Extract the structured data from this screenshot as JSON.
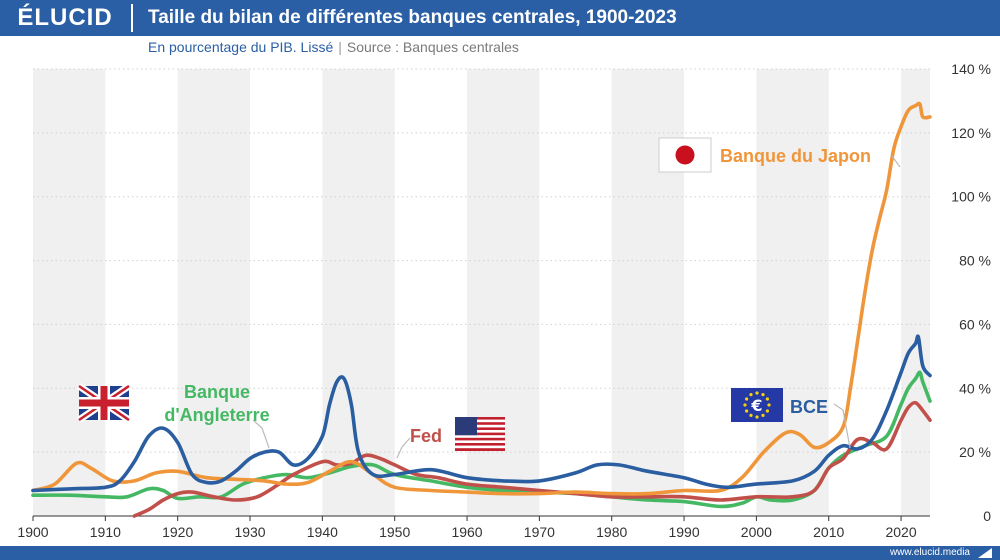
{
  "header": {
    "logo": "ÉLUCID",
    "title": "Taille du bilan de différentes banques centrales, 1900-2023",
    "subtitle": "En pourcentage du PIB. Lissé",
    "separator": "|",
    "source": "Source : Banques centrales"
  },
  "footer": {
    "url": "www.elucid.media"
  },
  "colors": {
    "brand": "#2a5fa5",
    "japan": "#f0963a",
    "ecb": "#2a5ea0",
    "england": "#45b864",
    "fed": "#c2504a",
    "band": "#f0f0f0",
    "grid": "#d0d0d0"
  },
  "chart_data": {
    "type": "line",
    "title": "Taille du bilan de différentes banques centrales, 1900-2023",
    "subtitle": "En pourcentage du PIB. Lissé",
    "xlim": [
      1900,
      2024
    ],
    "ylim": [
      0,
      140
    ],
    "x_ticks": [
      1900,
      1910,
      1920,
      1930,
      1940,
      1950,
      1960,
      1970,
      1980,
      1990,
      2000,
      2010,
      2020
    ],
    "y_ticks": [
      0,
      20,
      40,
      60,
      80,
      100,
      120,
      140
    ],
    "y_tick_labels": [
      "0",
      "20 %",
      "40 %",
      "60 %",
      "80 %",
      "100 %",
      "120 %",
      "140 %"
    ],
    "grid": true,
    "series": [
      {
        "name": "Banque du Japon",
        "key": "japan",
        "color": "#f0963a",
        "points": [
          [
            1900,
            8
          ],
          [
            1903,
            10
          ],
          [
            1906,
            16.5
          ],
          [
            1908,
            15
          ],
          [
            1911,
            11
          ],
          [
            1914,
            11
          ],
          [
            1917,
            13.5
          ],
          [
            1920,
            14
          ],
          [
            1924,
            12
          ],
          [
            1928,
            11.5
          ],
          [
            1932,
            11
          ],
          [
            1935,
            10
          ],
          [
            1938,
            10.5
          ],
          [
            1941,
            14
          ],
          [
            1944,
            17
          ],
          [
            1947,
            13
          ],
          [
            1950,
            9
          ],
          [
            1955,
            8
          ],
          [
            1960,
            7.5
          ],
          [
            1965,
            7
          ],
          [
            1970,
            7
          ],
          [
            1975,
            7.5
          ],
          [
            1980,
            7
          ],
          [
            1985,
            7
          ],
          [
            1990,
            8
          ],
          [
            1995,
            8
          ],
          [
            1998,
            12
          ],
          [
            2001,
            20
          ],
          [
            2004,
            26
          ],
          [
            2006,
            25.5
          ],
          [
            2008,
            21.5
          ],
          [
            2010,
            23
          ],
          [
            2012,
            28
          ],
          [
            2013,
            40
          ],
          [
            2014,
            55
          ],
          [
            2015,
            70
          ],
          [
            2016,
            83
          ],
          [
            2017,
            93
          ],
          [
            2018,
            102
          ],
          [
            2019,
            115
          ],
          [
            2020,
            122
          ],
          [
            2021,
            127
          ],
          [
            2022,
            128.5
          ],
          [
            2022.6,
            129
          ],
          [
            2023,
            125
          ],
          [
            2024,
            125
          ]
        ]
      },
      {
        "name": "BCE",
        "key": "ecb",
        "color": "#2a5ea0",
        "points": [
          [
            1900,
            8
          ],
          [
            1905,
            8.5
          ],
          [
            1910,
            9
          ],
          [
            1912,
            11
          ],
          [
            1914,
            17
          ],
          [
            1916,
            25
          ],
          [
            1918,
            27.5
          ],
          [
            1920,
            23
          ],
          [
            1922,
            13
          ],
          [
            1924,
            10.5
          ],
          [
            1926,
            11
          ],
          [
            1928,
            14
          ],
          [
            1930,
            18
          ],
          [
            1932,
            20
          ],
          [
            1934,
            20
          ],
          [
            1936,
            16
          ],
          [
            1938,
            18
          ],
          [
            1940,
            25
          ],
          [
            1941,
            35
          ],
          [
            1942,
            42
          ],
          [
            1943,
            43
          ],
          [
            1944,
            35
          ],
          [
            1945,
            20
          ],
          [
            1947,
            13
          ],
          [
            1950,
            13
          ],
          [
            1955,
            14.5
          ],
          [
            1960,
            12
          ],
          [
            1965,
            11
          ],
          [
            1970,
            11
          ],
          [
            1975,
            13.5
          ],
          [
            1978,
            16
          ],
          [
            1981,
            16
          ],
          [
            1985,
            14
          ],
          [
            1990,
            12
          ],
          [
            1993,
            10
          ],
          [
            1996,
            9
          ],
          [
            2000,
            10
          ],
          [
            2005,
            11
          ],
          [
            2008,
            14
          ],
          [
            2010,
            19
          ],
          [
            2012,
            22
          ],
          [
            2014,
            21
          ],
          [
            2016,
            24
          ],
          [
            2018,
            33
          ],
          [
            2020,
            45
          ],
          [
            2021,
            51
          ],
          [
            2022,
            54
          ],
          [
            2022.4,
            56
          ],
          [
            2023,
            47
          ],
          [
            2024,
            44
          ]
        ]
      },
      {
        "name": "Banque d'Angleterre",
        "key": "england",
        "color": "#45b864",
        "points": [
          [
            1900,
            6.5
          ],
          [
            1905,
            6.5
          ],
          [
            1910,
            6
          ],
          [
            1913,
            6
          ],
          [
            1916,
            8.5
          ],
          [
            1918,
            8
          ],
          [
            1920,
            5.5
          ],
          [
            1923,
            6
          ],
          [
            1926,
            6
          ],
          [
            1929,
            10
          ],
          [
            1932,
            12
          ],
          [
            1935,
            13
          ],
          [
            1938,
            12
          ],
          [
            1941,
            13.5
          ],
          [
            1944,
            15.5
          ],
          [
            1947,
            16
          ],
          [
            1950,
            13
          ],
          [
            1955,
            11
          ],
          [
            1960,
            9
          ],
          [
            1965,
            8
          ],
          [
            1970,
            7.5
          ],
          [
            1975,
            7
          ],
          [
            1980,
            6
          ],
          [
            1985,
            5
          ],
          [
            1990,
            4.5
          ],
          [
            1995,
            3
          ],
          [
            1998,
            4
          ],
          [
            2000,
            6
          ],
          [
            2002,
            5
          ],
          [
            2005,
            5
          ],
          [
            2008,
            8
          ],
          [
            2010,
            15
          ],
          [
            2012,
            19
          ],
          [
            2015,
            22
          ],
          [
            2018,
            25
          ],
          [
            2020,
            35
          ],
          [
            2021,
            40
          ],
          [
            2022,
            43
          ],
          [
            2022.6,
            45
          ],
          [
            2023,
            42
          ],
          [
            2024,
            36
          ]
        ]
      },
      {
        "name": "Fed",
        "key": "fed",
        "color": "#c2504a",
        "points": [
          [
            1914,
            0
          ],
          [
            1916,
            2
          ],
          [
            1918,
            5
          ],
          [
            1920,
            7
          ],
          [
            1922,
            7.5
          ],
          [
            1925,
            6
          ],
          [
            1928,
            5
          ],
          [
            1931,
            6
          ],
          [
            1934,
            10
          ],
          [
            1936,
            13
          ],
          [
            1940,
            17
          ],
          [
            1942,
            16
          ],
          [
            1944,
            16.5
          ],
          [
            1946,
            19
          ],
          [
            1948,
            18
          ],
          [
            1950,
            16
          ],
          [
            1953,
            13
          ],
          [
            1956,
            12
          ],
          [
            1960,
            10
          ],
          [
            1965,
            9
          ],
          [
            1970,
            8
          ],
          [
            1975,
            7
          ],
          [
            1980,
            6
          ],
          [
            1985,
            6
          ],
          [
            1990,
            6
          ],
          [
            1995,
            5
          ],
          [
            2000,
            6
          ],
          [
            2005,
            6
          ],
          [
            2008,
            8
          ],
          [
            2010,
            15
          ],
          [
            2012,
            18
          ],
          [
            2014,
            24
          ],
          [
            2016,
            23
          ],
          [
            2018,
            21
          ],
          [
            2020,
            30
          ],
          [
            2021,
            34
          ],
          [
            2022,
            35.5
          ],
          [
            2023,
            33
          ],
          [
            2024,
            30
          ]
        ]
      }
    ],
    "annotations": [
      {
        "series": "japan",
        "label": "Banque du Japon"
      },
      {
        "series": "ecb",
        "label": "BCE"
      },
      {
        "series": "england",
        "label_lines": [
          "Banque",
          "d'Angleterre"
        ]
      },
      {
        "series": "fed",
        "label": "Fed"
      }
    ]
  }
}
